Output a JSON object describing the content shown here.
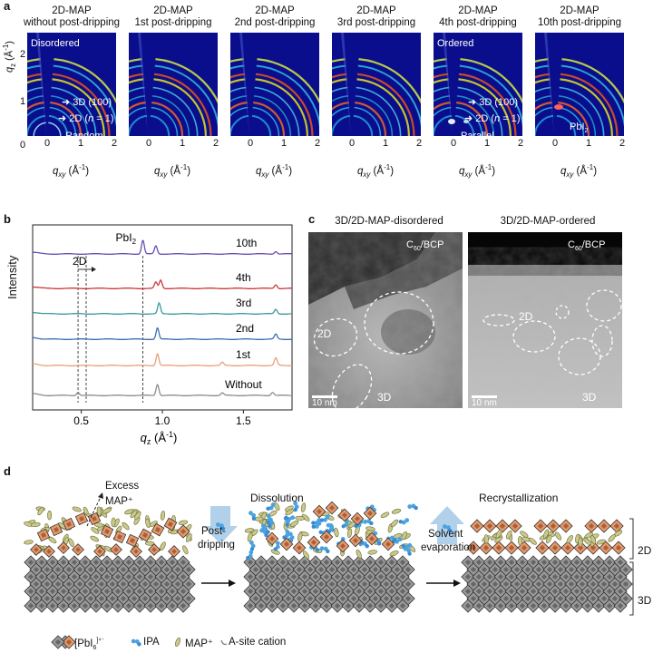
{
  "panel_labels": {
    "a": "a",
    "b": "b",
    "c": "c",
    "d": "d"
  },
  "panel_a": {
    "titles": [
      [
        "2D-MAP",
        "without post-dripping"
      ],
      [
        "2D-MAP",
        "1st post-dripping"
      ],
      [
        "2D-MAP",
        "2nd post-dripping"
      ],
      [
        "2D-MAP",
        "3rd post-dripping"
      ],
      [
        "2D-MAP",
        "4th post-dripping"
      ],
      [
        "2D-MAP",
        "10th post-dripping"
      ]
    ],
    "ylabel": "q_z (Å⁻¹)",
    "xlabel": "q_xy (Å⁻¹)",
    "y_ticks": [
      "0",
      "1",
      "2"
    ],
    "x_ticks": [
      "0",
      "1",
      "2"
    ],
    "p1_labels": {
      "disordered": "Disordered",
      "peak3d": "3D (100)",
      "peak2d_prefix": "2D (",
      "n": "n",
      "peak2d_suffix": " = 1)",
      "random": "Random"
    },
    "p5_labels": {
      "ordered": "Ordered",
      "peak3d": "3D (100)",
      "peak2d_prefix": "2D (",
      "n": "n",
      "peak2d_suffix": " = 1)",
      "parallel": "Parallel"
    },
    "p6_labels": {
      "pbi2": "PbI",
      "pbi2_sub": "2"
    }
  },
  "chart_data": {
    "type": "line",
    "title": "",
    "xlabel": "q_z (Å⁻¹)",
    "ylabel": "Intensity",
    "xlim": [
      0.2,
      1.8
    ],
    "x_ticks": [
      0.5,
      1.0,
      1.5
    ],
    "x_tick_labels": [
      "0.5",
      "1.0",
      "1.5"
    ],
    "series": [
      {
        "name": "Without",
        "color": "#8c8c8c",
        "peaks": [
          [
            0.48,
            0.5
          ],
          [
            0.97,
            1.8
          ],
          [
            1.37,
            0.4
          ],
          [
            1.68,
            0.5
          ]
        ]
      },
      {
        "name": "1st",
        "color": "#e8a07a",
        "peaks": [
          [
            0.97,
            1.9
          ],
          [
            1.37,
            0.5
          ],
          [
            1.7,
            1.2
          ]
        ]
      },
      {
        "name": "2nd",
        "color": "#3e6db5",
        "peaks": [
          [
            0.97,
            1.8
          ],
          [
            1.7,
            0.8
          ]
        ]
      },
      {
        "name": "3rd",
        "color": "#3a9a9c",
        "peaks": [
          [
            0.98,
            1.7
          ],
          [
            1.7,
            0.7
          ]
        ]
      },
      {
        "name": "4th",
        "color": "#c93a3a",
        "peaks": [
          [
            0.96,
            1.0
          ],
          [
            0.99,
            1.3
          ],
          [
            1.7,
            0.6
          ]
        ]
      },
      {
        "name": "10th",
        "color": "#6a4fb3",
        "peaks": [
          [
            0.88,
            2.2
          ],
          [
            0.96,
            1.3
          ],
          [
            1.7,
            0.4
          ]
        ]
      }
    ],
    "annotations": {
      "pbi2": "PbI",
      "pbi2_sub": "2",
      "twod": "2D",
      "dashed_x": [
        0.48,
        0.53,
        0.88
      ]
    }
  },
  "panel_c": {
    "titles": [
      "3D/2D-MAP-disordered",
      "3D/2D-MAP-ordered"
    ],
    "c60": "C",
    "c60_sub": "60",
    "c60_suffix": "/BCP",
    "label2d": "2D",
    "label3d": "3D",
    "scale": "10 nm"
  },
  "panel_d": {
    "excess": "Excess",
    "map_plus": "MAP⁺",
    "postdripping": [
      "Post-",
      "dripping"
    ],
    "dissolution": "Dissolution",
    "solvent": [
      "Solvent",
      "evaporation"
    ],
    "recrystallization": "Recrystallization",
    "label2d": "2D",
    "label3d": "3D",
    "legend": {
      "pbi6": "[PbI",
      "pbi6_sub": "6",
      "pbi6_sup": "]⁴⁻",
      "ipa": "IPA",
      "map": "MAP⁺",
      "asite": "A-site cation"
    }
  }
}
